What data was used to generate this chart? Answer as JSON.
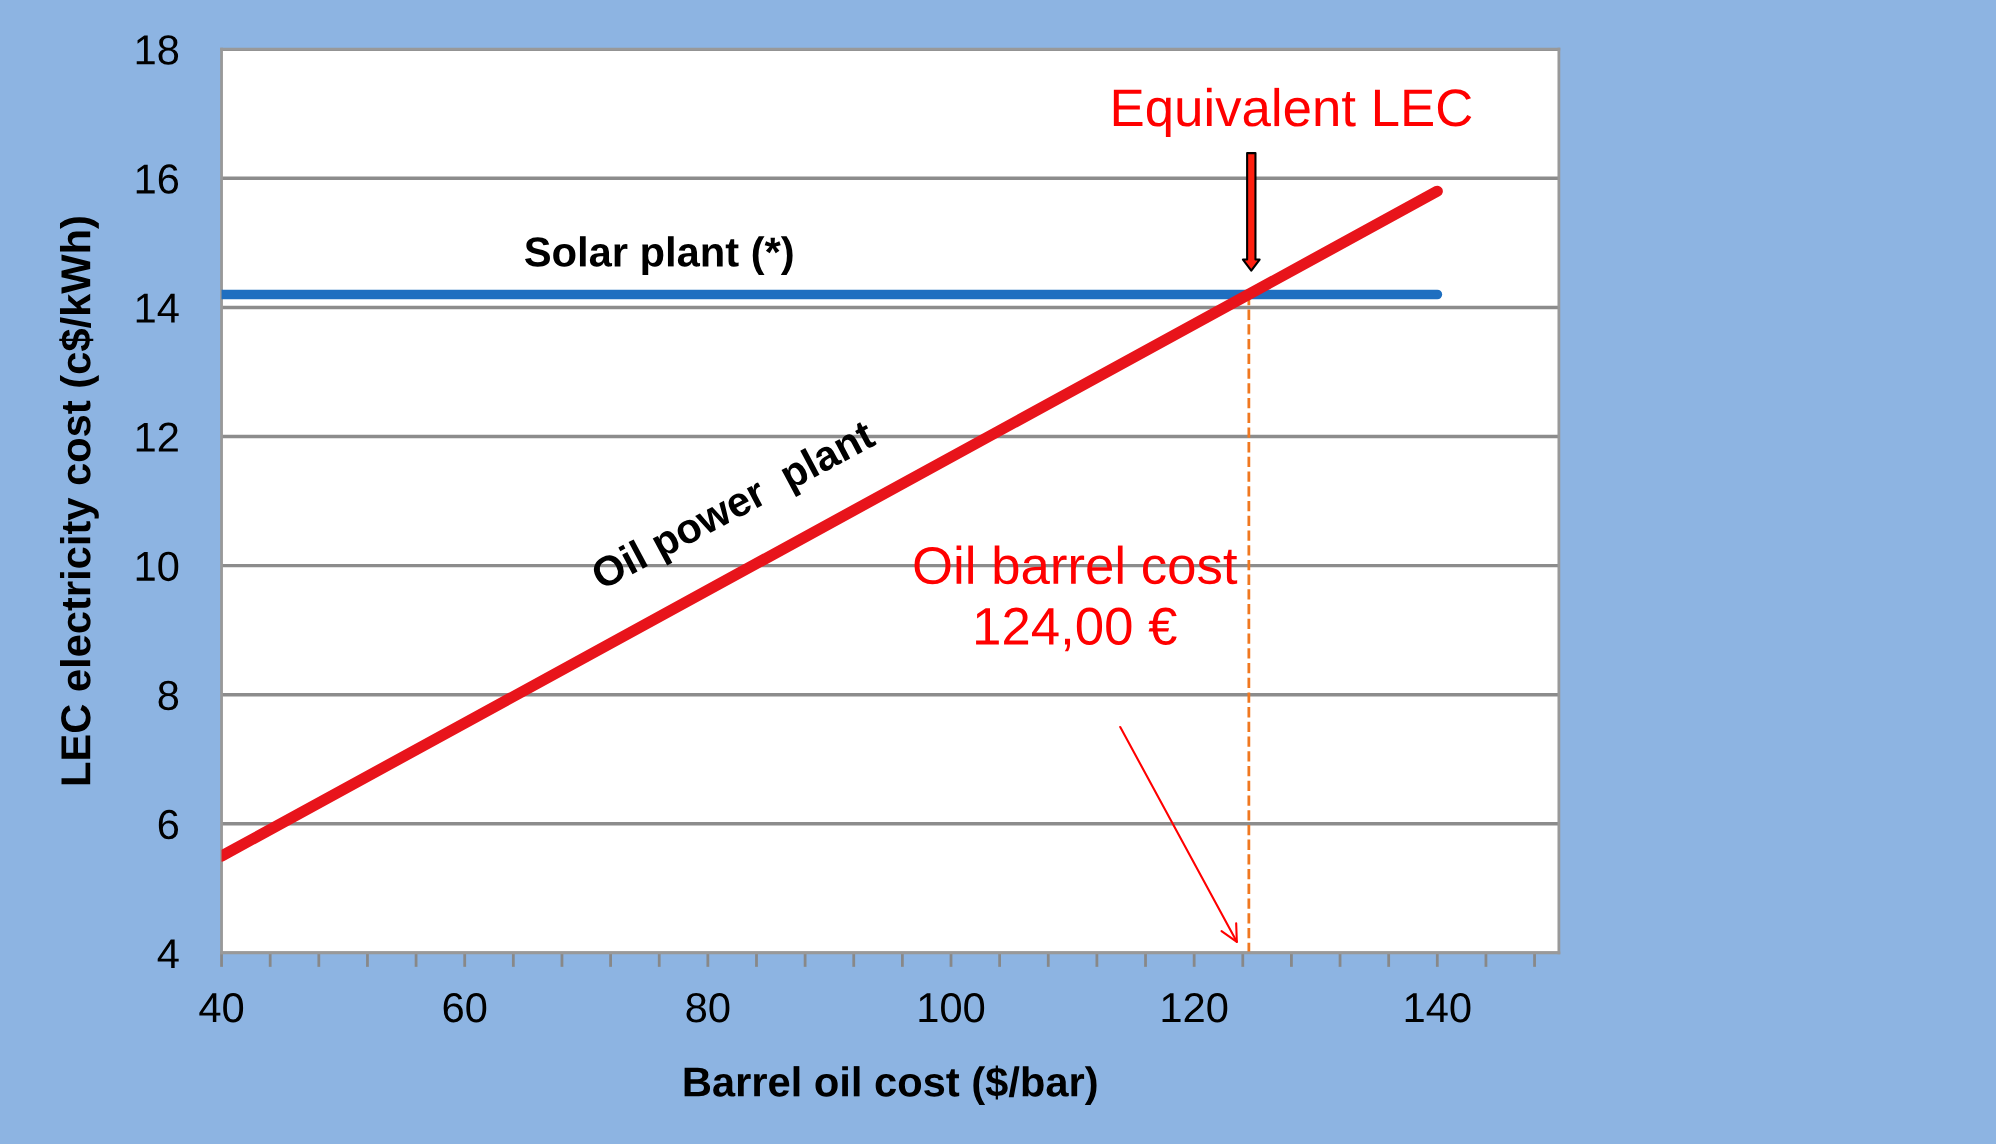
{
  "chart_data": {
    "type": "line",
    "xlabel": "Barrel oil cost ($/bar)",
    "ylabel": "LEC electricity cost (c$/kWh)",
    "x": [
      40,
      140
    ],
    "series": [
      {
        "name": "Solar plant (*)",
        "color": "#1f6fc0",
        "values": [
          14.2,
          14.2
        ]
      },
      {
        "name": "Oil power  plant",
        "color": "#e8141b",
        "values": [
          5.5,
          15.8
        ]
      }
    ],
    "xlim": [
      40,
      150
    ],
    "ylim": [
      4,
      18
    ],
    "xticks": [
      40,
      {
        "value": 44,
        "label": null
      },
      {
        "value": 48,
        "label": null
      },
      {
        "value": 52,
        "label": null
      },
      {
        "value": 56,
        "label": null
      },
      60,
      {
        "value": 64,
        "label": null
      },
      {
        "value": 68,
        "label": null
      },
      {
        "value": 72,
        "label": null
      },
      {
        "value": 76,
        "label": null
      },
      80,
      {
        "value": 84,
        "label": null
      },
      {
        "value": 88,
        "label": null
      },
      {
        "value": 92,
        "label": null
      },
      {
        "value": 96,
        "label": null
      },
      100,
      {
        "value": 104,
        "label": null
      },
      {
        "value": 108,
        "label": null
      },
      {
        "value": 112,
        "label": null
      },
      {
        "value": 116,
        "label": null
      },
      120,
      {
        "value": 124,
        "label": null
      },
      {
        "value": 128,
        "label": null
      },
      {
        "value": 132,
        "label": null
      },
      {
        "value": 136,
        "label": null
      },
      140,
      {
        "value": 144,
        "label": null
      },
      {
        "value": 148,
        "label": null
      }
    ],
    "yticks": [
      4,
      6,
      8,
      10,
      12,
      14,
      16,
      18
    ],
    "grid": "y",
    "legend": false,
    "ref_lines": [
      {
        "axis": "x",
        "value": 124.5,
        "label": null,
        "color": "#f07820",
        "line_style": "dashed"
      }
    ],
    "annotations": [
      "Equivalent LEC",
      "Oil barrel cost\n124,00 €"
    ]
  }
}
